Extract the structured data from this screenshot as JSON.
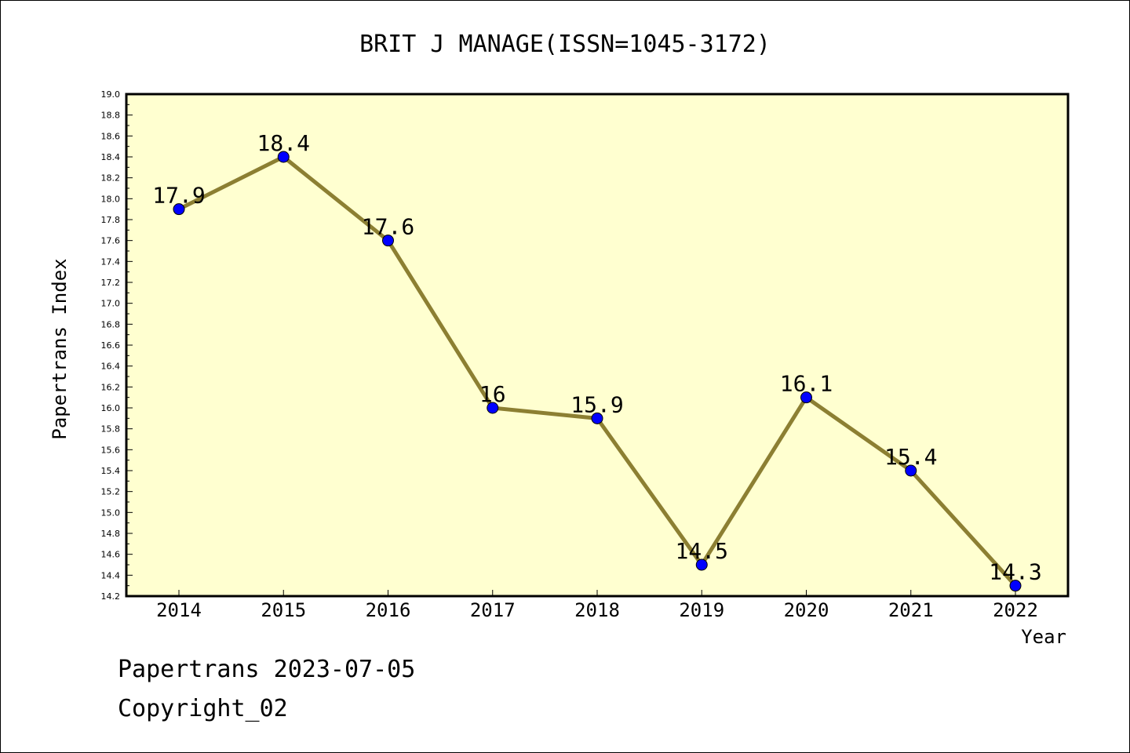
{
  "chart_data": {
    "type": "line",
    "title": "BRIT J MANAGE(ISSN=1045-3172)",
    "xlabel": "Year",
    "ylabel": "Papertrans Index",
    "categories": [
      "2014",
      "2015",
      "2016",
      "2017",
      "2018",
      "2019",
      "2020",
      "2021",
      "2022"
    ],
    "values": [
      17.9,
      18.4,
      17.6,
      16.0,
      15.9,
      14.5,
      16.1,
      15.4,
      14.3
    ],
    "data_labels": [
      "17.9",
      "18.4",
      "17.6",
      "16",
      "15.9",
      "14.5",
      "16.1",
      "15.4",
      "14.3"
    ],
    "ylim": [
      14.2,
      19.0
    ],
    "y_ticks": [
      "14.2",
      "14.4",
      "14.6",
      "14.8",
      "15.0",
      "15.2",
      "15.4",
      "15.6",
      "15.8",
      "16.0",
      "16.2",
      "16.4",
      "16.6",
      "16.8",
      "17.0",
      "17.2",
      "17.4",
      "17.6",
      "17.8",
      "18.0",
      "18.2",
      "18.4",
      "18.6",
      "18.8",
      "19.0"
    ],
    "grid": false,
    "colors": {
      "plot_background": "#ffffd0",
      "line": "#8c7f32",
      "marker": "#0000ff"
    }
  },
  "footer": {
    "line1": "Papertrans 2023-07-05",
    "line2": "Copyright_02"
  }
}
